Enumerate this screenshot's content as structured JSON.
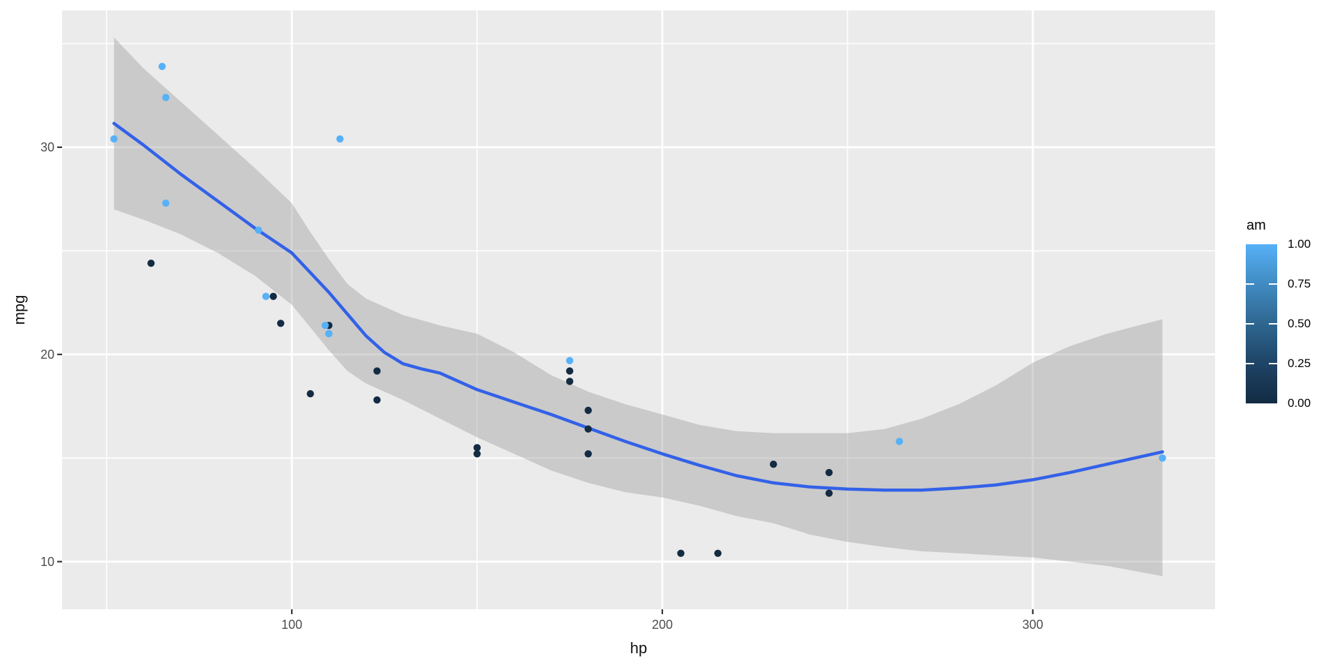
{
  "chart_data": {
    "type": "scatter",
    "title": "",
    "xlabel": "hp",
    "ylabel": "mpg",
    "grid": true,
    "panel_bg": "#EBEBEB",
    "grid_color": "#FFFFFF",
    "axis_text_color": "#4D4D4D",
    "x_axis": {
      "domain": [
        38.0,
        349.2
      ],
      "major_ticks": [
        100,
        200,
        300
      ],
      "minor_ticks": [
        50,
        150,
        250
      ],
      "tick_labels": [
        "100",
        "200",
        "300"
      ]
    },
    "y_axis": {
      "domain": [
        7.7,
        36.6
      ],
      "major_ticks": [
        10,
        20,
        30
      ],
      "minor_ticks": [
        15,
        25,
        35
      ],
      "tick_labels": [
        "10",
        "20",
        "30"
      ]
    },
    "series": [
      {
        "name": "am = 0",
        "color": "#132B43",
        "points": [
          [
            110,
            21.4
          ],
          [
            175,
            18.7
          ],
          [
            105,
            18.1
          ],
          [
            245,
            14.3
          ],
          [
            62,
            24.4
          ],
          [
            95,
            22.8
          ],
          [
            123,
            19.2
          ],
          [
            123,
            17.8
          ],
          [
            180,
            16.4
          ],
          [
            180,
            17.3
          ],
          [
            180,
            15.2
          ],
          [
            205,
            10.4
          ],
          [
            215,
            10.4
          ],
          [
            230,
            14.7
          ],
          [
            97,
            21.5
          ],
          [
            150,
            15.5
          ],
          [
            150,
            15.2
          ],
          [
            245,
            13.3
          ],
          [
            175,
            19.2
          ]
        ]
      },
      {
        "name": "am = 1",
        "color": "#56B1F7",
        "points": [
          [
            110,
            21.0
          ],
          [
            110,
            21.0
          ],
          [
            93,
            22.8
          ],
          [
            66,
            32.4
          ],
          [
            52,
            30.4
          ],
          [
            65,
            33.9
          ],
          [
            175,
            19.7
          ],
          [
            66,
            27.3
          ],
          [
            91,
            26.0
          ],
          [
            113,
            30.4
          ],
          [
            264,
            15.8
          ],
          [
            335,
            15.0
          ],
          [
            109,
            21.4
          ]
        ]
      }
    ],
    "smooth_line": {
      "color": "#3361E8",
      "points": [
        [
          52,
          31.15
        ],
        [
          60,
          30.1
        ],
        [
          70,
          28.7
        ],
        [
          80,
          27.4
        ],
        [
          90,
          26.1
        ],
        [
          100,
          24.9
        ],
        [
          110,
          23.0
        ],
        [
          120,
          20.9
        ],
        [
          125,
          20.1
        ],
        [
          130,
          19.55
        ],
        [
          135,
          19.3
        ],
        [
          140,
          19.1
        ],
        [
          150,
          18.3
        ],
        [
          160,
          17.7
        ],
        [
          170,
          17.1
        ],
        [
          180,
          16.45
        ],
        [
          190,
          15.8
        ],
        [
          200,
          15.2
        ],
        [
          210,
          14.65
        ],
        [
          220,
          14.15
        ],
        [
          230,
          13.8
        ],
        [
          240,
          13.6
        ],
        [
          250,
          13.5
        ],
        [
          260,
          13.45
        ],
        [
          270,
          13.45
        ],
        [
          280,
          13.55
        ],
        [
          290,
          13.7
        ],
        [
          300,
          13.95
        ],
        [
          310,
          14.3
        ],
        [
          320,
          14.7
        ],
        [
          335,
          15.3
        ]
      ]
    },
    "ribbon": {
      "fill": "#999999",
      "opacity": 0.4,
      "upper": [
        [
          52,
          35.3
        ],
        [
          60,
          33.8
        ],
        [
          70,
          32.2
        ],
        [
          80,
          30.6
        ],
        [
          90,
          29.0
        ],
        [
          100,
          27.3
        ],
        [
          105,
          25.9
        ],
        [
          110,
          24.6
        ],
        [
          115,
          23.4
        ],
        [
          120,
          22.7
        ],
        [
          125,
          22.3
        ],
        [
          130,
          21.9
        ],
        [
          140,
          21.4
        ],
        [
          150,
          21.0
        ],
        [
          160,
          20.1
        ],
        [
          170,
          19.0
        ],
        [
          180,
          18.2
        ],
        [
          190,
          17.6
        ],
        [
          200,
          17.1
        ],
        [
          210,
          16.6
        ],
        [
          220,
          16.3
        ],
        [
          230,
          16.2
        ],
        [
          240,
          16.2
        ],
        [
          250,
          16.2
        ],
        [
          260,
          16.4
        ],
        [
          270,
          16.9
        ],
        [
          280,
          17.6
        ],
        [
          290,
          18.5
        ],
        [
          300,
          19.6
        ],
        [
          310,
          20.4
        ],
        [
          320,
          21.0
        ],
        [
          335,
          21.7
        ]
      ],
      "lower": [
        [
          52,
          27.0
        ],
        [
          60,
          26.5
        ],
        [
          70,
          25.8
        ],
        [
          80,
          24.9
        ],
        [
          90,
          23.8
        ],
        [
          100,
          22.4
        ],
        [
          105,
          21.3
        ],
        [
          110,
          20.2
        ],
        [
          115,
          19.2
        ],
        [
          120,
          18.6
        ],
        [
          125,
          18.2
        ],
        [
          130,
          17.8
        ],
        [
          140,
          16.9
        ],
        [
          150,
          16.0
        ],
        [
          160,
          15.2
        ],
        [
          170,
          14.4
        ],
        [
          180,
          13.8
        ],
        [
          190,
          13.35
        ],
        [
          200,
          13.1
        ],
        [
          210,
          12.7
        ],
        [
          220,
          12.2
        ],
        [
          230,
          11.85
        ],
        [
          240,
          11.3
        ],
        [
          250,
          10.95
        ],
        [
          260,
          10.7
        ],
        [
          270,
          10.5
        ],
        [
          280,
          10.4
        ],
        [
          290,
          10.3
        ],
        [
          300,
          10.2
        ],
        [
          310,
          10.0
        ],
        [
          320,
          9.8
        ],
        [
          335,
          9.3
        ]
      ]
    },
    "legend": {
      "title": "am",
      "position": "right",
      "tick_labels": [
        "1.00",
        "0.75",
        "0.50",
        "0.25",
        "0.00"
      ],
      "tick_values": [
        1.0,
        0.75,
        0.5,
        0.25,
        0.0
      ],
      "gradient_high": "#56B1F7",
      "gradient_low": "#132B43",
      "gradient_stops": [
        "#56B1F7",
        "#418BC2",
        "#2E6690",
        "#1E4466",
        "#132B43"
      ]
    }
  }
}
